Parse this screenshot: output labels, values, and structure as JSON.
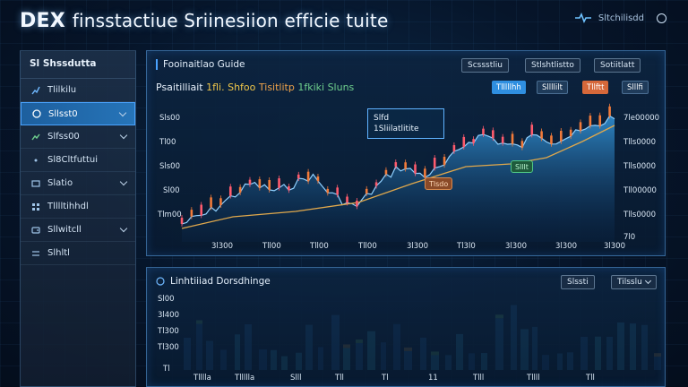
{
  "header": {
    "title_bold": "DEX",
    "title_rest": "finsstactiue Sriinesiion efficie tuite",
    "status_text": "Sltchilisdd"
  },
  "sidebar": {
    "heading": "Sl Shssdutta",
    "items": [
      {
        "label": "Tlilkilu"
      },
      {
        "label": "Sllsst0"
      },
      {
        "label": "Slfss00"
      },
      {
        "label": "Sl8Cltfuttui"
      },
      {
        "label": "Slatio"
      },
      {
        "label": "Tlllltihhdl"
      },
      {
        "label": "Sllwitcll"
      },
      {
        "label": "Slhltl"
      }
    ]
  },
  "top_panel": {
    "title": "Fooinaitlao Guide",
    "buttons": [
      "Scssstliu",
      "Stlshtlistto",
      "Sotiitlatt"
    ],
    "chips": [
      {
        "label": "Tlllllhh",
        "color": "#2f8fe0"
      },
      {
        "label": "Sllllilt",
        "color": "#1f3b5a"
      },
      {
        "label": "Tllftt",
        "color": "#d6683a"
      },
      {
        "label": "Slllfi",
        "color": "#1f3b5a"
      }
    ],
    "subbar": {
      "a": "Psaitilliait",
      "b": "1fli. Shfoo",
      "c": "Tisitlitp",
      "d": "1fkiki Sluns"
    },
    "tooltip": [
      "Slfd",
      "1Sliilatlitite"
    ],
    "tag_orange": "Tlsdo",
    "tag_green": "Slllt",
    "left_ticks": [
      "Sls00",
      "Tl00",
      "Sls00",
      "Sl00",
      "Tlm00"
    ],
    "right_ticks": [
      "7le00000",
      "Tlls0000",
      "Tlls0000",
      "Tll00000",
      "Tlls0000",
      "7l0"
    ],
    "x_ticks": [
      "3l300",
      "Tll00",
      "Tll00",
      "Tll00",
      "3l300",
      "Tl3l0",
      "3l300",
      "3l300",
      "3l300"
    ]
  },
  "bottom_panel": {
    "title": "Linhtiiiad Dorsdhinge",
    "dropdowns": [
      "Slssti",
      "Tilsslu"
    ],
    "y_ticks": [
      "Sl00",
      "3l400",
      "Tl300",
      "Tl300",
      "Tl"
    ],
    "x_ticks": [
      "Tlllla",
      "Tllllla",
      "Slll",
      "Tll",
      "Tl",
      "11",
      "Tlll",
      "Tllll",
      "Tll"
    ]
  },
  "colors": {
    "accent": "#4aa3ff",
    "candle_up": "#f27b3a",
    "candle_down": "#ff5b6d",
    "area": "#2b8fd6",
    "ma_line": "#e0a84c"
  }
}
